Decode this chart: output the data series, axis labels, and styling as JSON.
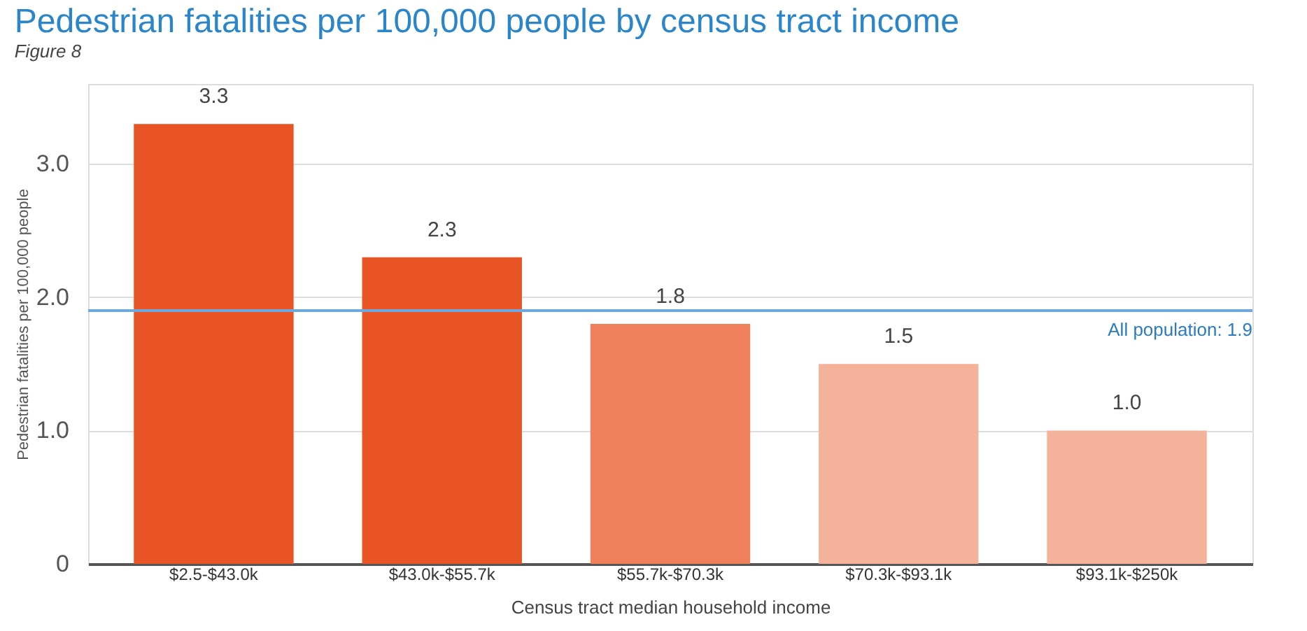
{
  "chart_data": {
    "type": "bar",
    "title": "Pedestrian fatalities per 100,000 people by census tract income",
    "xlabel": "Census tract median household income",
    "ylabel": "Pedestrian fatalities per 100,000 people",
    "categories": [
      "$2.5-$43.0k",
      "$43.0k-$55.7k",
      "$55.7k-$70.3k",
      "$70.3k-$93.1k",
      "$93.1k-$250k"
    ],
    "values": [
      3.3,
      2.3,
      1.8,
      1.5,
      1.0
    ],
    "colors": [
      "#e85426",
      "#e85426",
      "#f0805c",
      "#f5b29b",
      "#f5b29b"
    ],
    "value_labels": [
      "3.3",
      "2.3",
      "1.8",
      "1.5",
      "1.0"
    ],
    "ylim": [
      0,
      3.6
    ],
    "yticks": [
      0,
      {
        "value": 1,
        "label": "1.0"
      },
      {
        "value": 2,
        "label": "2.0"
      },
      {
        "value": 3,
        "label": "3.0"
      }
    ],
    "grid": "y",
    "ref_lines": [
      {
        "axis": "y",
        "value": 1.9,
        "label": "All population: 1.9",
        "color": "#6fa8dc"
      }
    ],
    "annotations": [
      "Figure 8"
    ]
  }
}
